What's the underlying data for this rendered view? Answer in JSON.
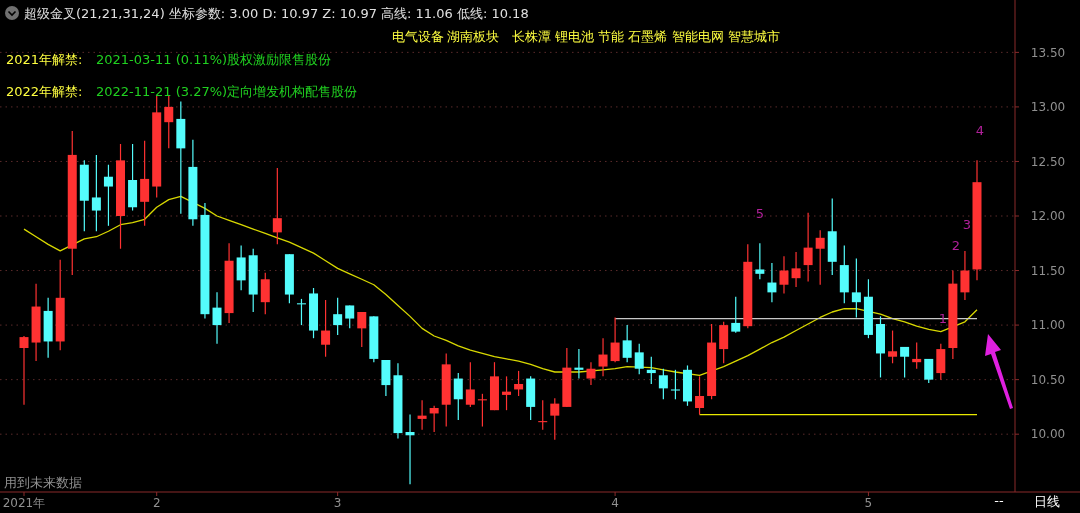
{
  "chart_data": {
    "type": "candlestick",
    "title": "超级金叉(21,21,31,24) 坐标参数: 3.00 D: 10.97 Z: 10.97 高线: 11.06 低线: 10.18",
    "annotations": [
      "电气设备",
      "湖南板块",
      "长株潭 锂电池 节能 石墨烯 智能电网 智慧城市",
      "2021年解禁:",
      "2021-03-11 (0.11%)股权激励限售股份",
      "2022年解禁:",
      "2022-11-21 (3.27%)定向增发机构配售股份",
      "用到未来数据",
      "--",
      "日线",
      "5",
      "1",
      "2",
      "3",
      "4"
    ],
    "categories": [
      "2021年",
      null,
      null,
      null,
      null,
      null,
      null,
      null,
      null,
      null,
      null,
      "2",
      null,
      null,
      null,
      null,
      null,
      null,
      null,
      null,
      null,
      null,
      null,
      null,
      null,
      null,
      "3",
      null,
      null,
      null,
      null,
      null,
      null,
      null,
      null,
      null,
      null,
      null,
      null,
      null,
      null,
      null,
      null,
      null,
      null,
      null,
      null,
      null,
      null,
      "4",
      null,
      null,
      null,
      null,
      null,
      null,
      null,
      null,
      null,
      null,
      null,
      null,
      null,
      null,
      null,
      null,
      null,
      null,
      null,
      null,
      "5",
      null,
      null,
      null,
      null,
      null,
      null,
      null,
      null,
      null
    ],
    "ohlc": [
      [
        10.79,
        10.9,
        10.27,
        10.89
      ],
      [
        10.84,
        11.38,
        10.67,
        11.17
      ],
      [
        11.13,
        11.25,
        10.7,
        10.85
      ],
      [
        10.85,
        11.6,
        10.77,
        11.25
      ],
      [
        11.7,
        12.78,
        11.46,
        12.56
      ],
      [
        12.47,
        12.51,
        11.86,
        12.14
      ],
      [
        12.17,
        12.56,
        11.86,
        12.05
      ],
      [
        12.36,
        12.47,
        11.91,
        12.27
      ],
      [
        12.0,
        12.66,
        11.7,
        12.51
      ],
      [
        12.33,
        12.66,
        12.05,
        12.08
      ],
      [
        12.13,
        12.69,
        11.91,
        12.34
      ],
      [
        12.27,
        13.1,
        12.17,
        12.95
      ],
      [
        12.86,
        13.1,
        12.62,
        13.0
      ],
      [
        12.89,
        13.05,
        12.02,
        12.62
      ],
      [
        12.45,
        12.7,
        11.91,
        11.97
      ],
      [
        12.01,
        12.12,
        11.06,
        11.1
      ],
      [
        11.16,
        11.3,
        10.83,
        11.0
      ],
      [
        11.11,
        11.75,
        11.02,
        11.59
      ],
      [
        11.62,
        11.73,
        11.32,
        11.41
      ],
      [
        11.64,
        11.7,
        11.12,
        11.28
      ],
      [
        11.21,
        11.48,
        11.1,
        11.42
      ],
      [
        11.85,
        12.44,
        11.74,
        11.98
      ],
      [
        11.65,
        11.65,
        11.2,
        11.28
      ],
      [
        11.2,
        11.24,
        11.0,
        11.19
      ],
      [
        11.29,
        11.34,
        10.88,
        10.95
      ],
      [
        10.82,
        11.23,
        10.71,
        10.95
      ],
      [
        11.1,
        11.25,
        10.91,
        11.0
      ],
      [
        11.18,
        11.18,
        10.97,
        11.06
      ],
      [
        10.97,
        11.12,
        10.8,
        11.12
      ],
      [
        11.08,
        11.08,
        10.66,
        10.69
      ],
      [
        10.68,
        10.68,
        10.35,
        10.45
      ],
      [
        10.54,
        10.65,
        9.96,
        10.01
      ],
      [
        10.02,
        10.18,
        9.54,
        9.99
      ],
      [
        10.14,
        10.31,
        10.04,
        10.17
      ],
      [
        10.19,
        10.26,
        10.02,
        10.24
      ],
      [
        10.27,
        10.74,
        10.07,
        10.64
      ],
      [
        10.51,
        10.56,
        10.13,
        10.32
      ],
      [
        10.27,
        10.66,
        10.25,
        10.41
      ],
      [
        10.31,
        10.37,
        10.07,
        10.32
      ],
      [
        10.22,
        10.66,
        10.22,
        10.53
      ],
      [
        10.36,
        10.53,
        10.22,
        10.39
      ],
      [
        10.41,
        10.58,
        10.35,
        10.46
      ],
      [
        10.51,
        10.53,
        10.13,
        10.25
      ],
      [
        10.11,
        10.31,
        10.04,
        10.12
      ],
      [
        10.17,
        10.33,
        9.95,
        10.28
      ],
      [
        10.25,
        10.79,
        10.25,
        10.61
      ],
      [
        10.61,
        10.78,
        10.51,
        10.59
      ],
      [
        10.51,
        10.66,
        10.45,
        10.6
      ],
      [
        10.62,
        10.88,
        10.53,
        10.73
      ],
      [
        10.67,
        11.07,
        10.66,
        10.84
      ],
      [
        10.86,
        11.0,
        10.66,
        10.7
      ],
      [
        10.75,
        10.83,
        10.55,
        10.6
      ],
      [
        10.59,
        10.71,
        10.46,
        10.56
      ],
      [
        10.54,
        10.6,
        10.32,
        10.42
      ],
      [
        10.41,
        10.59,
        10.32,
        10.4
      ],
      [
        10.59,
        10.63,
        10.26,
        10.3
      ],
      [
        10.24,
        10.53,
        10.18,
        10.35
      ],
      [
        10.35,
        11.01,
        10.32,
        10.84
      ],
      [
        10.78,
        11.03,
        10.65,
        11.0
      ],
      [
        11.02,
        11.26,
        10.93,
        10.94
      ],
      [
        10.99,
        11.74,
        10.97,
        11.58
      ],
      [
        11.51,
        11.75,
        11.42,
        11.47
      ],
      [
        11.39,
        11.57,
        11.21,
        11.3
      ],
      [
        11.37,
        11.63,
        11.29,
        11.5
      ],
      [
        11.43,
        11.67,
        11.35,
        11.52
      ],
      [
        11.55,
        12.03,
        11.4,
        11.71
      ],
      [
        11.7,
        11.87,
        11.37,
        11.8
      ],
      [
        11.86,
        12.16,
        11.46,
        11.58
      ],
      [
        11.55,
        11.73,
        11.2,
        11.3
      ],
      [
        11.3,
        11.61,
        11.07,
        11.21
      ],
      [
        11.26,
        11.42,
        10.88,
        10.91
      ],
      [
        11.01,
        11.08,
        10.52,
        10.74
      ],
      [
        10.71,
        10.95,
        10.65,
        10.76
      ],
      [
        10.8,
        10.8,
        10.52,
        10.71
      ],
      [
        10.66,
        10.84,
        10.6,
        10.69
      ],
      [
        10.69,
        10.69,
        10.47,
        10.5
      ],
      [
        10.56,
        10.83,
        10.5,
        10.78
      ],
      [
        10.79,
        11.5,
        10.69,
        11.38
      ],
      [
        11.3,
        11.68,
        11.23,
        11.5
      ],
      [
        11.51,
        12.51,
        11.41,
        12.31
      ]
    ],
    "colors": [
      "#ff3232",
      "#ff3232",
      "#54fcfc",
      "#ff3232",
      "#ff3232",
      "#54fcfc",
      "#54fcfc",
      "#54fcfc",
      "#ff3232",
      "#54fcfc",
      "#ff3232",
      "#ff3232",
      "#ff3232",
      "#54fcfc",
      "#54fcfc",
      "#54fcfc",
      "#54fcfc",
      "#ff3232",
      "#54fcfc",
      "#54fcfc",
      "#ff3232",
      "#ff3232",
      "#54fcfc",
      "#54fcfc",
      "#54fcfc",
      "#ff3232",
      "#54fcfc",
      "#54fcfc",
      "#ff3232",
      "#54fcfc",
      "#54fcfc",
      "#54fcfc",
      "#54fcfc",
      "#ff3232",
      "#ff3232",
      "#ff3232",
      "#54fcfc",
      "#ff3232",
      "#ff3232",
      "#ff3232",
      "#ff3232",
      "#ff3232",
      "#54fcfc",
      "#ff3232",
      "#ff3232",
      "#ff3232",
      "#54fcfc",
      "#ff3232",
      "#ff3232",
      "#ff3232",
      "#54fcfc",
      "#54fcfc",
      "#54fcfc",
      "#54fcfc",
      "#54fcfc",
      "#54fcfc",
      "#ff3232",
      "#ff3232",
      "#ff3232",
      "#54fcfc",
      "#ff3232",
      "#54fcfc",
      "#54fcfc",
      "#ff3232",
      "#ff3232",
      "#ff3232",
      "#ff3232",
      "#54fcfc",
      "#54fcfc",
      "#54fcfc",
      "#54fcfc",
      "#54fcfc",
      "#ff3232",
      "#54fcfc",
      "#ff3232",
      "#54fcfc",
      "#ff3232",
      "#ff3232",
      "#ff3232",
      "#ff3232"
    ],
    "series": [
      {
        "type": "line",
        "color": "#d8d800",
        "values": [
          11.88,
          11.81,
          11.74,
          11.68,
          null,
          11.79,
          11.81,
          11.86,
          11.92,
          11.94,
          11.97,
          12.08,
          12.15,
          12.18,
          null,
          12.07,
          12.0,
          11.96,
          11.92,
          11.88,
          11.84,
          11.8,
          11.76,
          11.71,
          11.66,
          11.59,
          11.52,
          11.47,
          11.42,
          11.37,
          11.28,
          11.18,
          11.08,
          10.97,
          10.9,
          10.86,
          10.81,
          10.77,
          10.74,
          10.71,
          10.69,
          10.67,
          10.64,
          10.6,
          10.57,
          null,
          10.57,
          null,
          10.59,
          10.6,
          10.62,
          null,
          10.61,
          10.59,
          10.57,
          null,
          10.54,
          null,
          10.62,
          10.67,
          10.72,
          10.78,
          10.84,
          10.89,
          10.95,
          11.01,
          11.07,
          11.12,
          11.15,
          11.15,
          null,
          11.1,
          11.06,
          11.03,
          10.99,
          10.96,
          10.94,
          null,
          11.03,
          11.14
        ]
      },
      {
        "type": "line",
        "color": "#c8c8c8",
        "values": [
          null,
          null,
          null,
          null,
          null,
          null,
          null,
          null,
          null,
          null,
          null,
          null,
          null,
          null,
          null,
          null,
          null,
          null,
          null,
          null,
          null,
          null,
          null,
          null,
          null,
          null,
          null,
          null,
          null,
          null,
          null,
          null,
          null,
          null,
          null,
          null,
          null,
          null,
          null,
          null,
          null,
          null,
          null,
          null,
          null,
          null,
          null,
          null,
          null,
          11.06,
          11.06,
          11.06,
          11.06,
          11.06,
          11.06,
          11.06,
          11.06,
          11.06,
          11.06,
          11.06,
          null,
          11.06,
          11.06,
          11.06,
          11.06,
          11.06,
          11.06,
          null,
          11.06,
          11.06,
          11.06,
          11.06,
          11.06,
          11.06,
          11.06,
          11.06,
          11.06,
          null,
          11.06,
          11.06
        ]
      },
      {
        "type": "line",
        "color": "#e8e800",
        "values": [
          null,
          null,
          null,
          null,
          null,
          null,
          null,
          null,
          null,
          null,
          null,
          null,
          null,
          null,
          null,
          null,
          null,
          null,
          null,
          null,
          null,
          null,
          null,
          null,
          null,
          null,
          null,
          null,
          null,
          null,
          null,
          null,
          null,
          null,
          null,
          null,
          null,
          null,
          null,
          null,
          null,
          null,
          null,
          null,
          null,
          null,
          null,
          null,
          null,
          null,
          null,
          null,
          null,
          null,
          null,
          null,
          10.18,
          10.18,
          10.18,
          10.18,
          10.18,
          10.18,
          10.18,
          10.18,
          10.18,
          10.18,
          10.18,
          10.18,
          10.18,
          10.18,
          10.18,
          10.18,
          10.18,
          10.18,
          10.18,
          10.18,
          10.18,
          10.18,
          10.18,
          10.18
        ]
      }
    ],
    "ylim": [
      9.47,
      13.98
    ],
    "yticks": [
      {
        "value": 10,
        "label": "10.00"
      },
      {
        "value": 10.5,
        "label": "10.50"
      },
      {
        "value": 11,
        "label": "11.00"
      },
      {
        "value": 11.5,
        "label": "11.50"
      },
      {
        "value": 12,
        "label": "12.00"
      },
      {
        "value": 12.5,
        "label": "12.50"
      },
      {
        "value": 13,
        "label": "13.00"
      },
      {
        "value": 13.5,
        "label": "13.50"
      }
    ],
    "grid": "y"
  }
}
